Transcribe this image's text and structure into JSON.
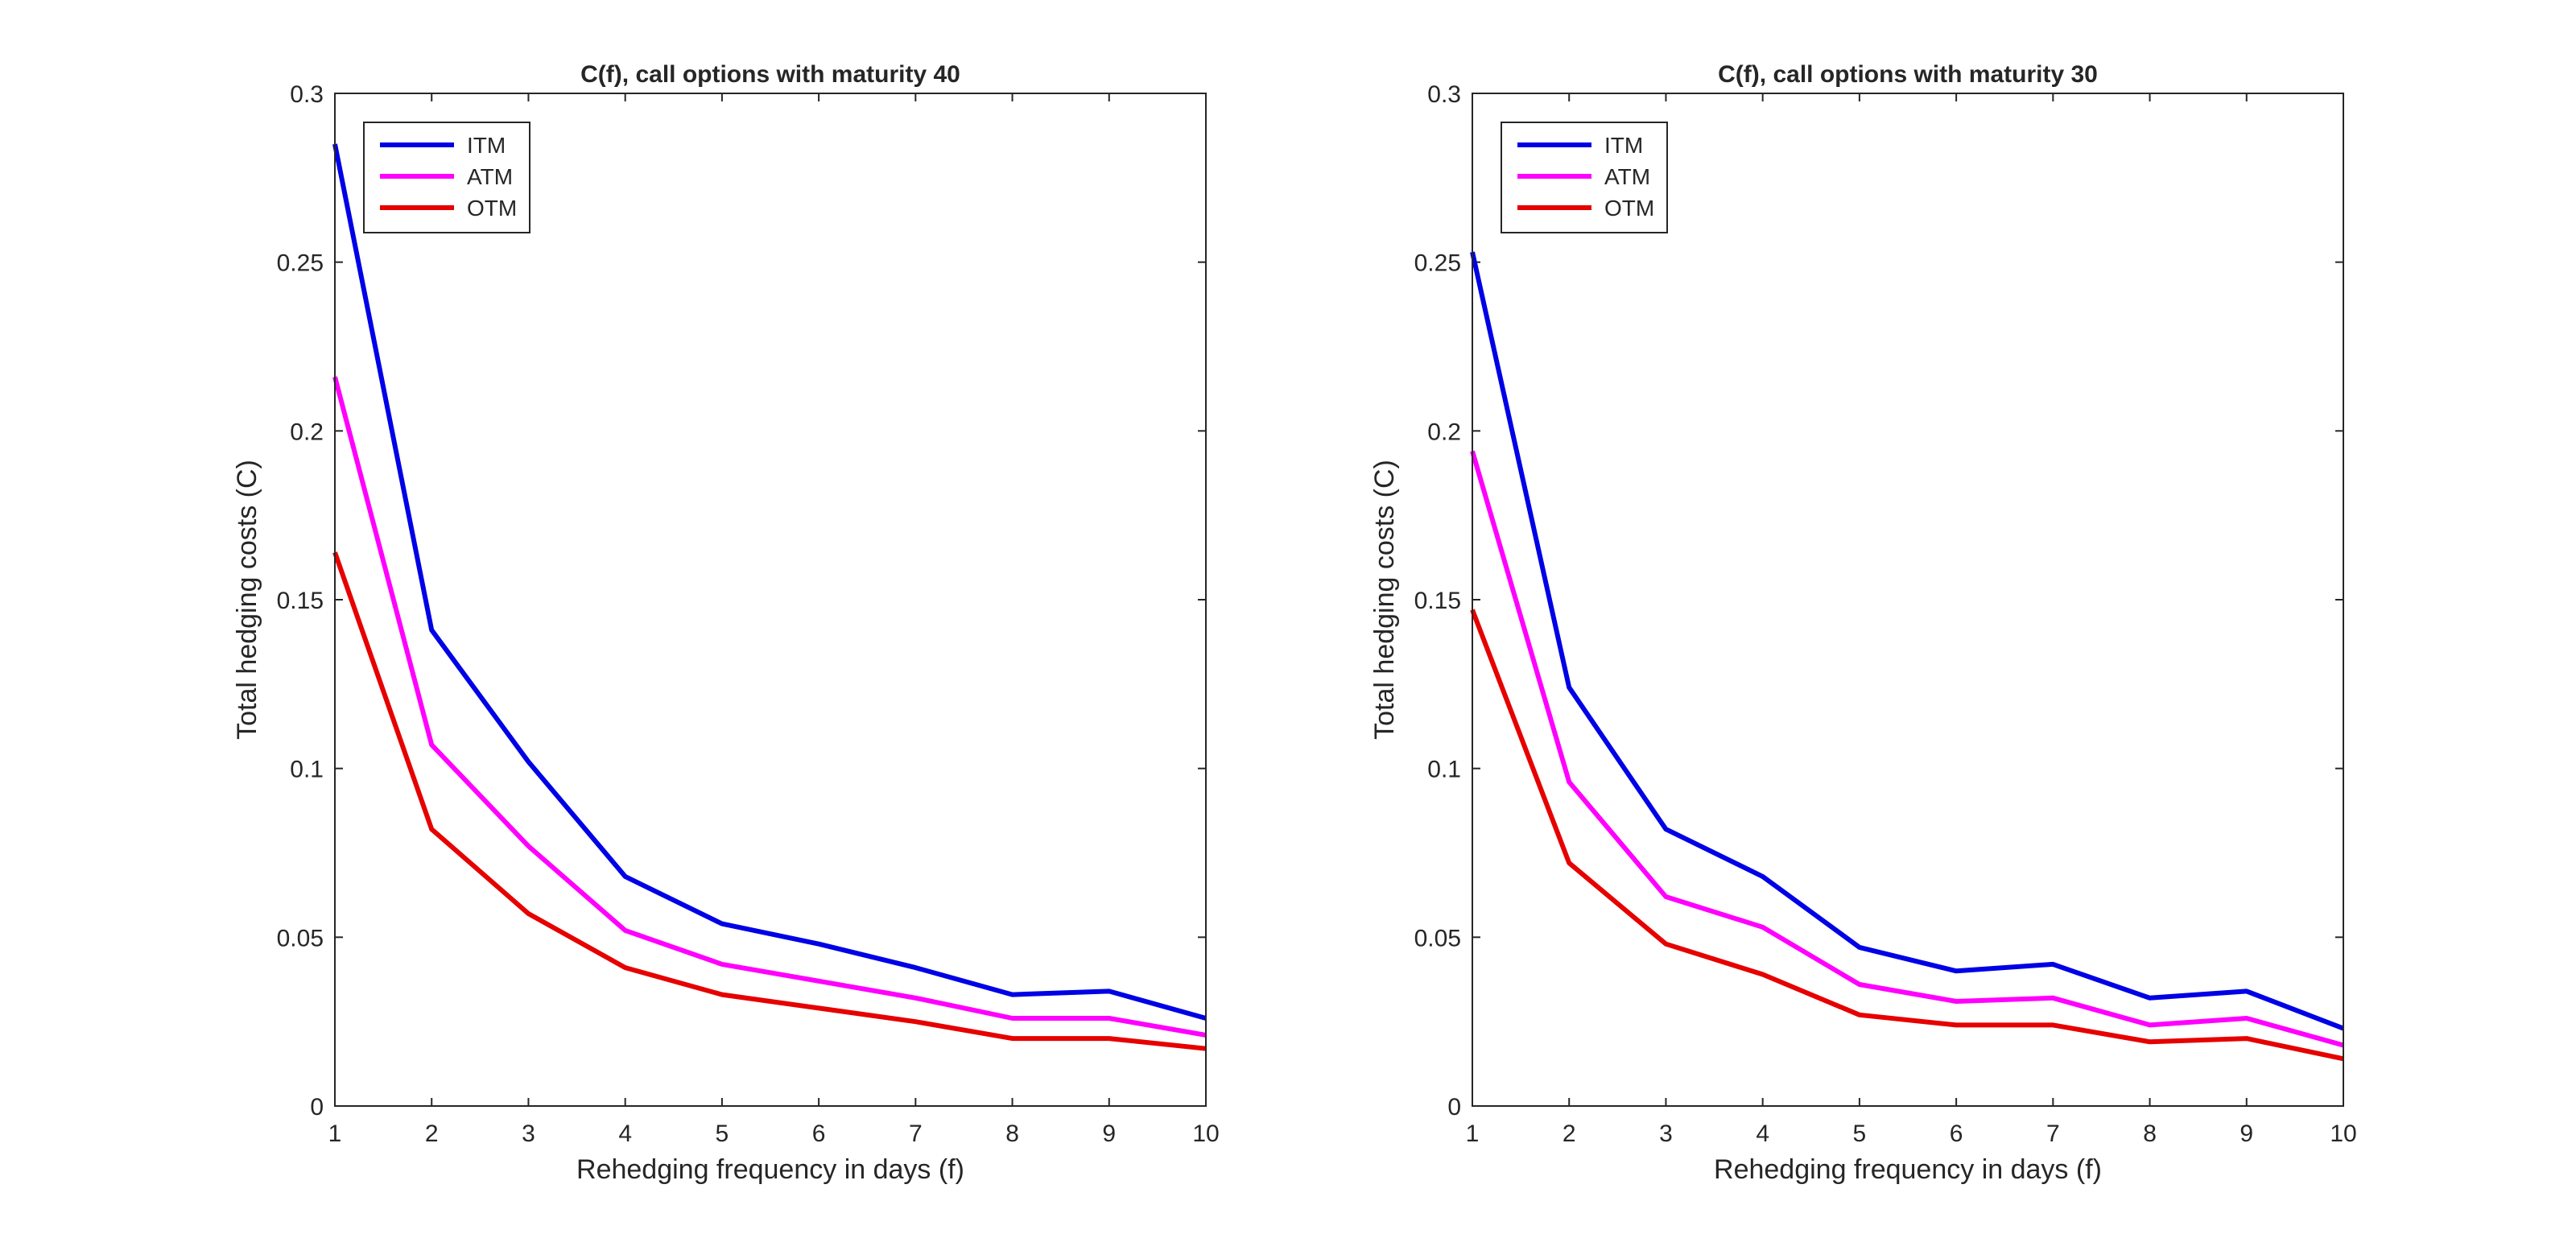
{
  "chart_data": [
    {
      "type": "line",
      "title": "C(f), call options with maturity 40",
      "xlabel": "Rehedging frequency in days (f)",
      "ylabel": "Total hedging costs (C)",
      "x": [
        1,
        2,
        3,
        4,
        5,
        6,
        7,
        8,
        9,
        10
      ],
      "xlim": [
        1,
        10
      ],
      "ylim": [
        0,
        0.3
      ],
      "xticks": [
        "1",
        "2",
        "3",
        "4",
        "5",
        "6",
        "7",
        "8",
        "9",
        "10"
      ],
      "yticks": [
        "0",
        "0.05",
        "0.1",
        "0.15",
        "0.2",
        "0.25",
        "0.3"
      ],
      "grid": false,
      "legend_position": "top-left",
      "series": [
        {
          "name": "ITM",
          "color": "#0000e6",
          "values": [
            0.285,
            0.141,
            0.102,
            0.068,
            0.054,
            0.048,
            0.041,
            0.033,
            0.034,
            0.026
          ]
        },
        {
          "name": "ATM",
          "color": "#ff00ff",
          "values": [
            0.216,
            0.107,
            0.077,
            0.052,
            0.042,
            0.037,
            0.032,
            0.026,
            0.026,
            0.021
          ]
        },
        {
          "name": "OTM",
          "color": "#e60000",
          "values": [
            0.164,
            0.082,
            0.057,
            0.041,
            0.033,
            0.029,
            0.025,
            0.02,
            0.02,
            0.017
          ]
        }
      ]
    },
    {
      "type": "line",
      "title": "C(f), call options with maturity 30",
      "xlabel": "Rehedging frequency in days (f)",
      "ylabel": "Total hedging costs (C)",
      "x": [
        1,
        2,
        3,
        4,
        5,
        6,
        7,
        8,
        9,
        10
      ],
      "xlim": [
        1,
        10
      ],
      "ylim": [
        0,
        0.3
      ],
      "xticks": [
        "1",
        "2",
        "3",
        "4",
        "5",
        "6",
        "7",
        "8",
        "9",
        "10"
      ],
      "yticks": [
        "0",
        "0.05",
        "0.1",
        "0.15",
        "0.2",
        "0.25",
        "0.3"
      ],
      "grid": false,
      "legend_position": "top-left",
      "series": [
        {
          "name": "ITM",
          "color": "#0000e6",
          "values": [
            0.253,
            0.124,
            0.082,
            0.068,
            0.047,
            0.04,
            0.042,
            0.032,
            0.034,
            0.023
          ]
        },
        {
          "name": "ATM",
          "color": "#ff00ff",
          "values": [
            0.194,
            0.096,
            0.062,
            0.053,
            0.036,
            0.031,
            0.032,
            0.024,
            0.026,
            0.018
          ]
        },
        {
          "name": "OTM",
          "color": "#e60000",
          "values": [
            0.147,
            0.072,
            0.048,
            0.039,
            0.027,
            0.024,
            0.024,
            0.019,
            0.02,
            0.014
          ]
        }
      ]
    }
  ]
}
